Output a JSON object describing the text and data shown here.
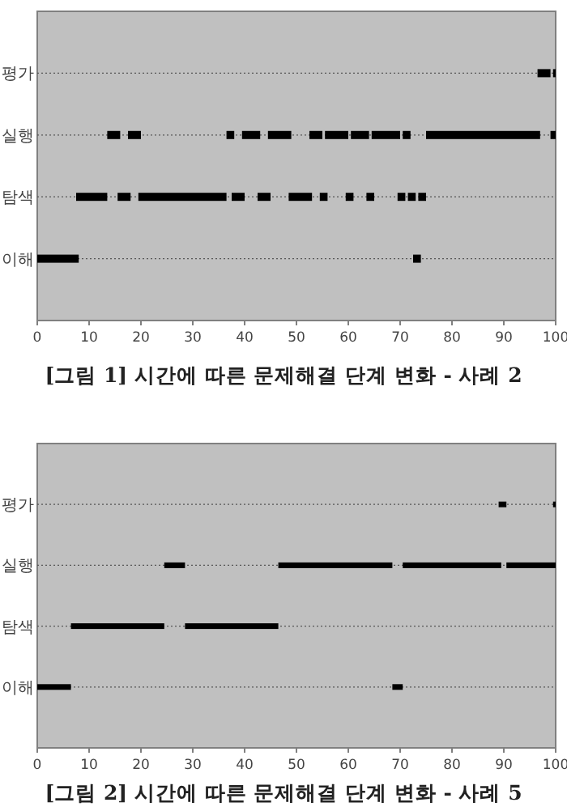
{
  "chart_data": [
    {
      "type": "bar",
      "orientation": "horizontal",
      "categories": [
        "평가",
        "실행",
        "탐색",
        "이해"
      ],
      "xlim": [
        0,
        100
      ],
      "xticks": [
        0,
        10,
        20,
        30,
        40,
        50,
        60,
        70,
        80,
        90,
        100
      ],
      "grid": "y",
      "annotations": [
        "[그림 1] 시간에 따른 문제해결 단계 변화 - 사례 2"
      ],
      "series": [
        {
          "color": "#000000",
          "base": [
            96.5,
            13.5,
            7.5,
            0
          ],
          "values": [
            2.5,
            2.5,
            6,
            8
          ]
        },
        {
          "color": "#000000",
          "base": [
            99.5,
            17.5,
            15.5,
            72.5
          ],
          "values": [
            0.5,
            2.5,
            2.5,
            1.5
          ]
        },
        {
          "color": "#000000",
          "base": [
            null,
            36.5,
            19.5,
            null
          ],
          "values": [
            null,
            1.5,
            17,
            null
          ]
        },
        {
          "color": "#000000",
          "base": [
            null,
            39.5,
            37.5,
            null
          ],
          "values": [
            null,
            3.5,
            2.5,
            null
          ]
        },
        {
          "color": "#000000",
          "base": [
            null,
            44.5,
            42.5,
            null
          ],
          "values": [
            null,
            4.5,
            2.5,
            null
          ]
        },
        {
          "color": "#000000",
          "base": [
            null,
            52.5,
            48.5,
            null
          ],
          "values": [
            null,
            2.5,
            4.5,
            null
          ]
        },
        {
          "color": "#000000",
          "base": [
            null,
            55.5,
            54.5,
            null
          ],
          "values": [
            null,
            4.5,
            1.5,
            null
          ]
        },
        {
          "color": "#000000",
          "base": [
            null,
            60.5,
            59.5,
            null
          ],
          "values": [
            null,
            3.5,
            1.5,
            null
          ]
        },
        {
          "color": "#000000",
          "base": [
            null,
            64.5,
            63.5,
            null
          ],
          "values": [
            null,
            5.5,
            1.5,
            null
          ]
        },
        {
          "color": "#000000",
          "base": [
            null,
            70.5,
            69.5,
            null
          ],
          "values": [
            null,
            1.5,
            1.5,
            null
          ]
        },
        {
          "color": "#000000",
          "base": [
            null,
            75,
            71.5,
            null
          ],
          "values": [
            null,
            22,
            1.5,
            null
          ]
        },
        {
          "color": "#000000",
          "base": [
            null,
            99,
            73.5,
            null
          ],
          "values": [
            null,
            1,
            1.5,
            null
          ]
        }
      ]
    },
    {
      "type": "bar",
      "orientation": "horizontal",
      "categories": [
        "평가",
        "실행",
        "탐색",
        "이해"
      ],
      "xlim": [
        0,
        100
      ],
      "xticks": [
        0,
        10,
        20,
        30,
        40,
        50,
        60,
        70,
        80,
        90,
        100
      ],
      "grid": "y",
      "annotations": [
        "[그림 2] 시간에 따른 문제해결 단계 변화 - 사례 5"
      ],
      "series": [
        {
          "color": "#000000",
          "base": [
            89,
            24.5,
            6.5,
            0
          ],
          "values": [
            1.5,
            4,
            18,
            6.5
          ]
        },
        {
          "color": "#000000",
          "base": [
            99.5,
            46.5,
            28.5,
            68.5
          ],
          "values": [
            0.5,
            22,
            18,
            2
          ]
        },
        {
          "color": "#000000",
          "base": [
            null,
            70.5,
            null,
            null
          ],
          "values": [
            null,
            19,
            null,
            null
          ]
        },
        {
          "color": "#000000",
          "base": [
            null,
            90.5,
            null,
            null
          ],
          "values": [
            null,
            9.5,
            null,
            null
          ]
        }
      ]
    }
  ]
}
